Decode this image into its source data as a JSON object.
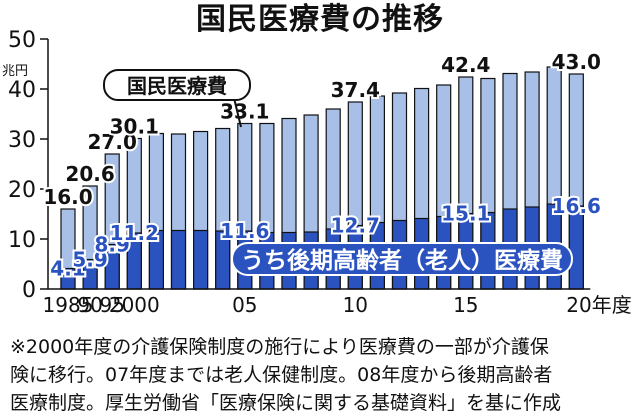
{
  "title": "国民医療費の推移",
  "chart_data": {
    "type": "bar",
    "years": [
      1985,
      1990,
      1995,
      2000,
      2001,
      2002,
      2003,
      2004,
      2005,
      2006,
      2007,
      2008,
      2009,
      2010,
      2011,
      2012,
      2013,
      2014,
      2015,
      2016,
      2017,
      2018,
      2019,
      2020
    ],
    "series": [
      {
        "name": "国民医療費",
        "values": [
          16.0,
          20.6,
          27.0,
          30.1,
          31.1,
          31.0,
          31.5,
          32.1,
          33.1,
          33.1,
          34.1,
          34.8,
          36.0,
          37.4,
          38.6,
          39.2,
          40.1,
          40.8,
          42.4,
          42.1,
          43.1,
          43.4,
          44.4,
          43.0
        ]
      },
      {
        "name": "うち後期高齢者（老人）医療費",
        "values": [
          4.1,
          5.9,
          8.9,
          11.2,
          11.7,
          11.7,
          11.7,
          11.6,
          11.6,
          11.3,
          11.3,
          11.4,
          12.0,
          12.7,
          13.3,
          13.7,
          14.1,
          14.5,
          15.1,
          15.3,
          16.0,
          16.4,
          17.0,
          16.6
        ]
      }
    ],
    "labeled_total_indices": [
      0,
      1,
      2,
      3,
      8,
      13,
      18,
      23
    ],
    "labeled_total_text": [
      "16.0",
      "20.6",
      "27.0",
      "30.1",
      "33.1",
      "37.4",
      "42.4",
      "43.0"
    ],
    "labeled_elder_indices": [
      0,
      1,
      2,
      3,
      8,
      13,
      18,
      23
    ],
    "labeled_elder_text": [
      "4.1",
      "5.9",
      "8.9",
      "11.2",
      "11.6",
      "12.7",
      "15.1",
      "16.6"
    ],
    "x_tick_indices": [
      0,
      1,
      2,
      3,
      8,
      13,
      18,
      23
    ],
    "x_tick_labels": [
      "1985",
      "90",
      "95",
      "2000",
      "05",
      "10",
      "15",
      "20年度"
    ],
    "y_ticks": [
      0,
      10,
      20,
      30,
      40,
      50
    ],
    "ylim": [
      0,
      50
    ],
    "ylabel": "兆円",
    "grid": false,
    "colors": {
      "total": "#a8bfe8",
      "elder": "#2b53c0",
      "legend_bg": "#2b53c0"
    }
  },
  "callout": {
    "label": "国民医療費"
  },
  "legend": {
    "label": "うち後期高齢者（老人）医療費"
  },
  "footnote": {
    "lines": [
      "※2000年度の介護保険制度の施行により医療費の一部が介護保",
      "険に移行。07年度までは老人保健制度。08年度から後期高齢者",
      "医療制度。厚生労働省「医療保険に関する基礎資料」を基に作成"
    ]
  }
}
